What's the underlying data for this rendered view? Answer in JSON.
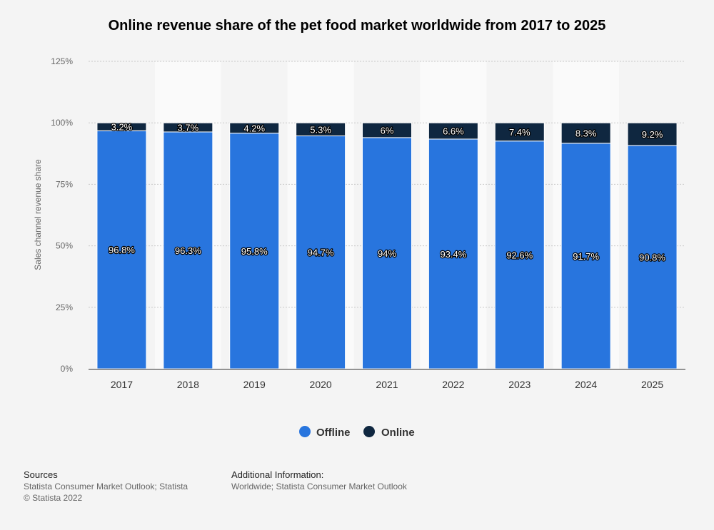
{
  "chart_data": {
    "type": "bar",
    "stacked": true,
    "title": "Online revenue share of the pet food market worldwide from 2017 to 2025",
    "xlabel": "",
    "ylabel": "Sales channel revenue share",
    "categories": [
      "2017",
      "2018",
      "2019",
      "2020",
      "2021",
      "2022",
      "2023",
      "2024",
      "2025"
    ],
    "series": [
      {
        "name": "Offline",
        "color": "#2875de",
        "values": [
          96.8,
          96.3,
          95.8,
          94.7,
          94,
          93.4,
          92.6,
          91.7,
          90.8
        ],
        "labels": [
          "96.8%",
          "96.3%",
          "95.8%",
          "94.7%",
          "94%",
          "93.4%",
          "92.6%",
          "91.7%",
          "90.8%"
        ]
      },
      {
        "name": "Online",
        "color": "#0f2740",
        "values": [
          3.2,
          3.7,
          4.2,
          5.3,
          6,
          6.6,
          7.4,
          8.3,
          9.2
        ],
        "labels": [
          "3.2%",
          "3.7%",
          "4.2%",
          "5.3%",
          "6%",
          "6.6%",
          "7.4%",
          "8.3%",
          "9.2%"
        ]
      }
    ],
    "ylim": [
      0,
      125
    ],
    "yticks": [
      0,
      25,
      50,
      75,
      100,
      125
    ],
    "ytick_labels": [
      "0%",
      "25%",
      "50%",
      "75%",
      "100%",
      "125%"
    ],
    "grid": true,
    "legend_position": "bottom-center"
  },
  "footer": {
    "sources_heading": "Sources",
    "sources_line1": "Statista Consumer Market Outlook; Statista",
    "sources_line2": "© Statista 2022",
    "additional_heading": "Additional Information:",
    "additional_line1": "Worldwide; Statista Consumer Market Outlook"
  }
}
